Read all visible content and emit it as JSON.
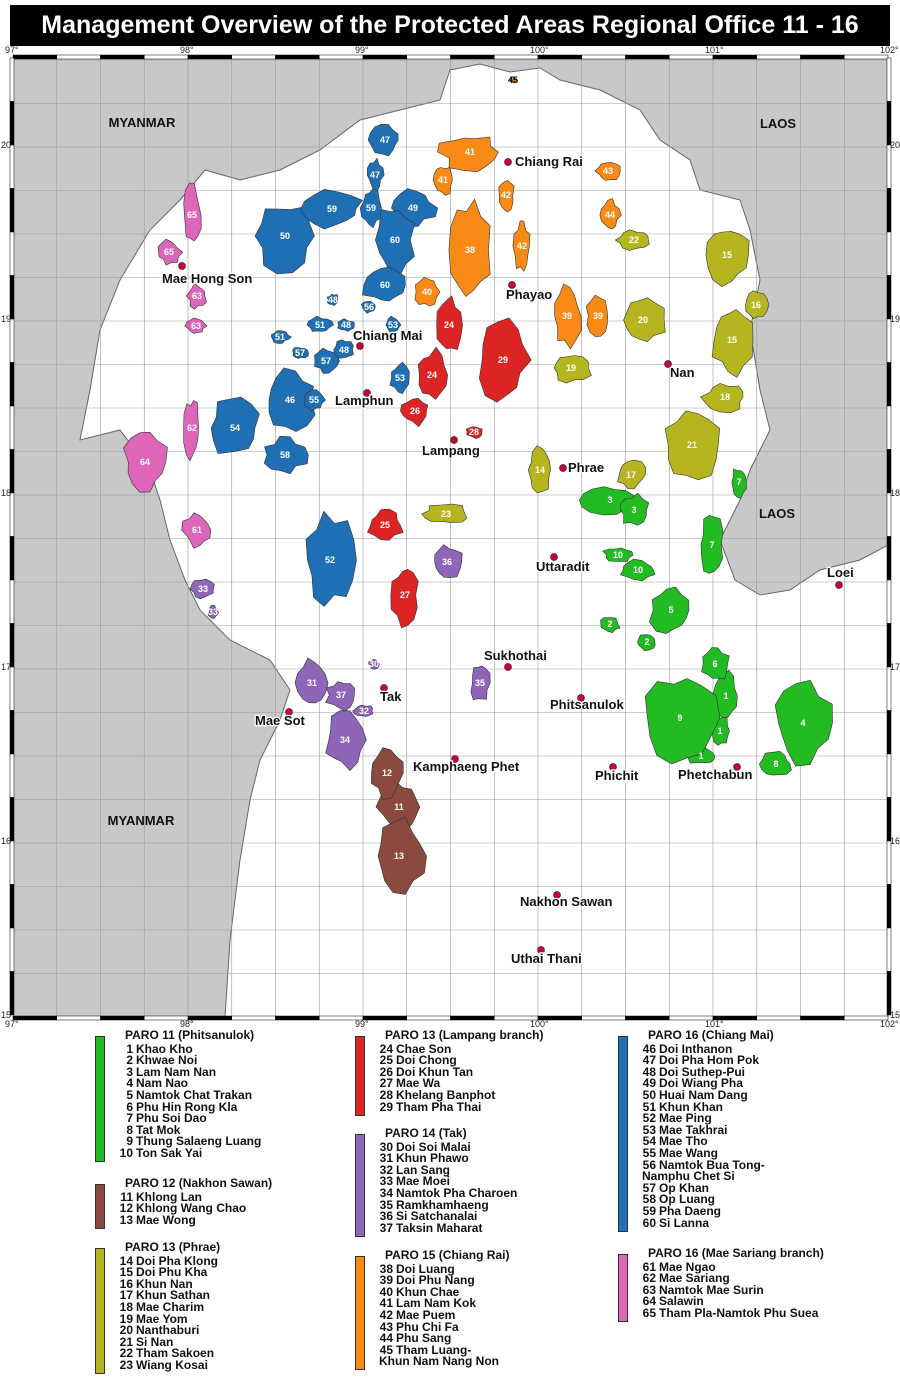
{
  "title": "Management Overview of the Protected Areas Regional Office 11 - 16",
  "longitude_ticks": [
    "97°",
    "98°",
    "99°",
    "100°",
    "101°",
    "102°"
  ],
  "latitude_ticks": [
    "20",
    "19",
    "18",
    "17",
    "16",
    "15°"
  ],
  "countries": [
    "MYANMAR",
    "LAOS",
    "LAOS",
    "MYANMAR"
  ],
  "colors": {
    "sea_land_outside": "#c8c8c8",
    "thailand": "#ffffff",
    "grid": "#999999",
    "city_dot": "#cc0033"
  },
  "cities": [
    "Chiang Rai",
    "Phayao",
    "Mae Hong Son",
    "Chiang Mai",
    "Lamphun",
    "Nan",
    "Lampang",
    "Phrae",
    "Uttaradit",
    "Loei",
    "Sukhothai",
    "Tak",
    "Mae Sot",
    "Phitsanulok",
    "Kamphaeng Phet",
    "Phichit",
    "Phetchabun",
    "Nakhon Sawan",
    "Uthai Thani"
  ],
  "groups": [
    {
      "title": "PARO 11 (Phitsanulok)",
      "color": "#22bb22",
      "items": [
        {
          "num": "1",
          "name": "Khao Kho"
        },
        {
          "num": "2",
          "name": "Khwae Noi"
        },
        {
          "num": "3",
          "name": "Lam Nam Nan"
        },
        {
          "num": "4",
          "name": "Nam Nao"
        },
        {
          "num": "5",
          "name": "Namtok Chat Trakan"
        },
        {
          "num": "6",
          "name": "Phu Hin Rong Kla"
        },
        {
          "num": "7",
          "name": "Phu Soi Dao"
        },
        {
          "num": "8",
          "name": "Tat Mok"
        },
        {
          "num": "9",
          "name": "Thung Salaeng Luang"
        },
        {
          "num": "10",
          "name": "Ton Sak Yai"
        }
      ]
    },
    {
      "title": "PARO 12 (Nakhon Sawan)",
      "color": "#8b4a3f",
      "items": [
        {
          "num": "11",
          "name": "Khlong Lan"
        },
        {
          "num": "12",
          "name": "Khlong Wang Chao"
        },
        {
          "num": "13",
          "name": "Mae Wong"
        }
      ]
    },
    {
      "title": "PARO 13 (Phrae)",
      "color": "#b5b520",
      "items": [
        {
          "num": "14",
          "name": "Doi Pha Klong"
        },
        {
          "num": "15",
          "name": "Doi Phu Kha"
        },
        {
          "num": "16",
          "name": "Khun Nan"
        },
        {
          "num": "17",
          "name": "Khun Sathan"
        },
        {
          "num": "18",
          "name": "Mae Charim"
        },
        {
          "num": "19",
          "name": "Mae Yom"
        },
        {
          "num": "20",
          "name": "Nanthaburi"
        },
        {
          "num": "21",
          "name": "Si Nan"
        },
        {
          "num": "22",
          "name": "Tham Sakoen"
        },
        {
          "num": "23",
          "name": "Wiang Kosai"
        }
      ]
    },
    {
      "title": "PARO 13 (Lampang branch)",
      "color": "#dd2424",
      "items": [
        {
          "num": "24",
          "name": "Chae Son"
        },
        {
          "num": "25",
          "name": "Doi Chong"
        },
        {
          "num": "26",
          "name": "Doi Khun Tan"
        },
        {
          "num": "27",
          "name": "Mae Wa"
        },
        {
          "num": "28",
          "name": "Khelang Banphot"
        },
        {
          "num": "29",
          "name": "Tham Pha Thai"
        }
      ]
    },
    {
      "title": "PARO 14 (Tak)",
      "color": "#8e65b8",
      "items": [
        {
          "num": "30",
          "name": "Doi Soi Malai"
        },
        {
          "num": "31",
          "name": "Khun Phawo"
        },
        {
          "num": "32",
          "name": "Lan Sang"
        },
        {
          "num": "33",
          "name": "Mae Moei"
        },
        {
          "num": "34",
          "name": "Namtok Pha Charoen"
        },
        {
          "num": "35",
          "name": "Ramkhamhaeng"
        },
        {
          "num": "36",
          "name": "Si Satchanalai"
        },
        {
          "num": "37",
          "name": "Taksin Maharat"
        }
      ]
    },
    {
      "title": "PARO 15 (Chiang Rai)",
      "color": "#f98a16",
      "items": [
        {
          "num": "38",
          "name": "Doi Luang"
        },
        {
          "num": "39",
          "name": "Doi Phu Nang"
        },
        {
          "num": "40",
          "name": "Khun Chae"
        },
        {
          "num": "41",
          "name": "Lam Nam Kok"
        },
        {
          "num": "42",
          "name": "Mae Puem"
        },
        {
          "num": "43",
          "name": "Phu Chi Fa"
        },
        {
          "num": "44",
          "name": "Phu Sang"
        },
        {
          "num": "45",
          "name": "Tham Luang-\n   Khun Nam Nang Non"
        }
      ]
    },
    {
      "title": "PARO 16 (Chiang Mai)",
      "color": "#1f6fb5",
      "items": [
        {
          "num": "46",
          "name": "Doi Inthanon"
        },
        {
          "num": "47",
          "name": "Doi Pha Hom Pok"
        },
        {
          "num": "48",
          "name": "Doi Suthep-Pui"
        },
        {
          "num": "49",
          "name": "Doi Wiang Pha"
        },
        {
          "num": "50",
          "name": "Huai Nam Dang"
        },
        {
          "num": "51",
          "name": "Khun Khan"
        },
        {
          "num": "52",
          "name": "Mae Ping"
        },
        {
          "num": "53",
          "name": "Mae Takhrai"
        },
        {
          "num": "54",
          "name": "Mae Tho"
        },
        {
          "num": "55",
          "name": "Mae Wang"
        },
        {
          "num": "56",
          "name": "Namtok Bua Tong-\n   Namphu Chet Si"
        },
        {
          "num": "57",
          "name": "Op Khan"
        },
        {
          "num": "58",
          "name": "Op Luang"
        },
        {
          "num": "59",
          "name": "Pha Daeng"
        },
        {
          "num": "60",
          "name": "Si Lanna"
        }
      ]
    },
    {
      "title": "PARO 16 (Mae Sariang branch)",
      "color": "#dd66bb",
      "items": [
        {
          "num": "61",
          "name": "Mae Ngao"
        },
        {
          "num": "62",
          "name": "Mae Sariang"
        },
        {
          "num": "63",
          "name": "Namtok Mae Surin"
        },
        {
          "num": "64",
          "name": "Salawin"
        },
        {
          "num": "65",
          "name": "Tham Pla-Namtok Phu Suea"
        }
      ]
    }
  ]
}
